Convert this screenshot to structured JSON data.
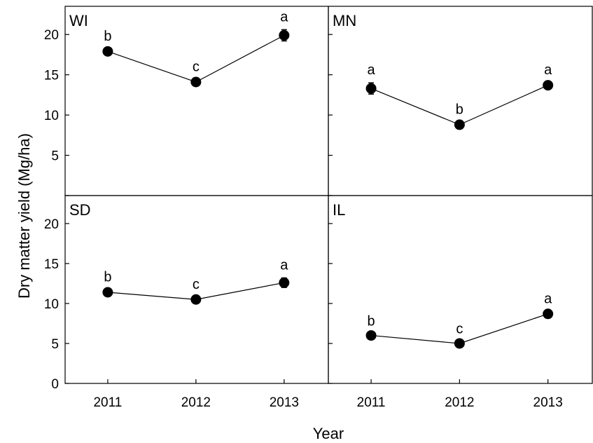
{
  "chart_data": {
    "type": "line",
    "xlabel": "Year",
    "ylabel": "Dry matter yield (Mg/ha)",
    "categories": [
      "2011",
      "2012",
      "2013"
    ],
    "ylim": [
      0,
      23.5
    ],
    "yticks": [
      0,
      5,
      10,
      15,
      20
    ],
    "grid": false,
    "panels": [
      {
        "label": "WI",
        "values": [
          17.9,
          14.1,
          19.9
        ],
        "errors": [
          0.3,
          0.3,
          0.7
        ],
        "letters": [
          "b",
          "c",
          "a"
        ]
      },
      {
        "label": "MN",
        "values": [
          13.3,
          8.8,
          13.7
        ],
        "errors": [
          0.7,
          0.3,
          0.3
        ],
        "letters": [
          "a",
          "b",
          "a"
        ]
      },
      {
        "label": "SD",
        "values": [
          11.4,
          10.5,
          12.6
        ],
        "errors": [
          0.3,
          0.3,
          0.6
        ],
        "letters": [
          "b",
          "c",
          "a"
        ]
      },
      {
        "label": "IL",
        "values": [
          6.0,
          5.0,
          8.7
        ],
        "errors": [
          0.2,
          0.2,
          0.3
        ],
        "letters": [
          "b",
          "c",
          "a"
        ]
      }
    ]
  }
}
